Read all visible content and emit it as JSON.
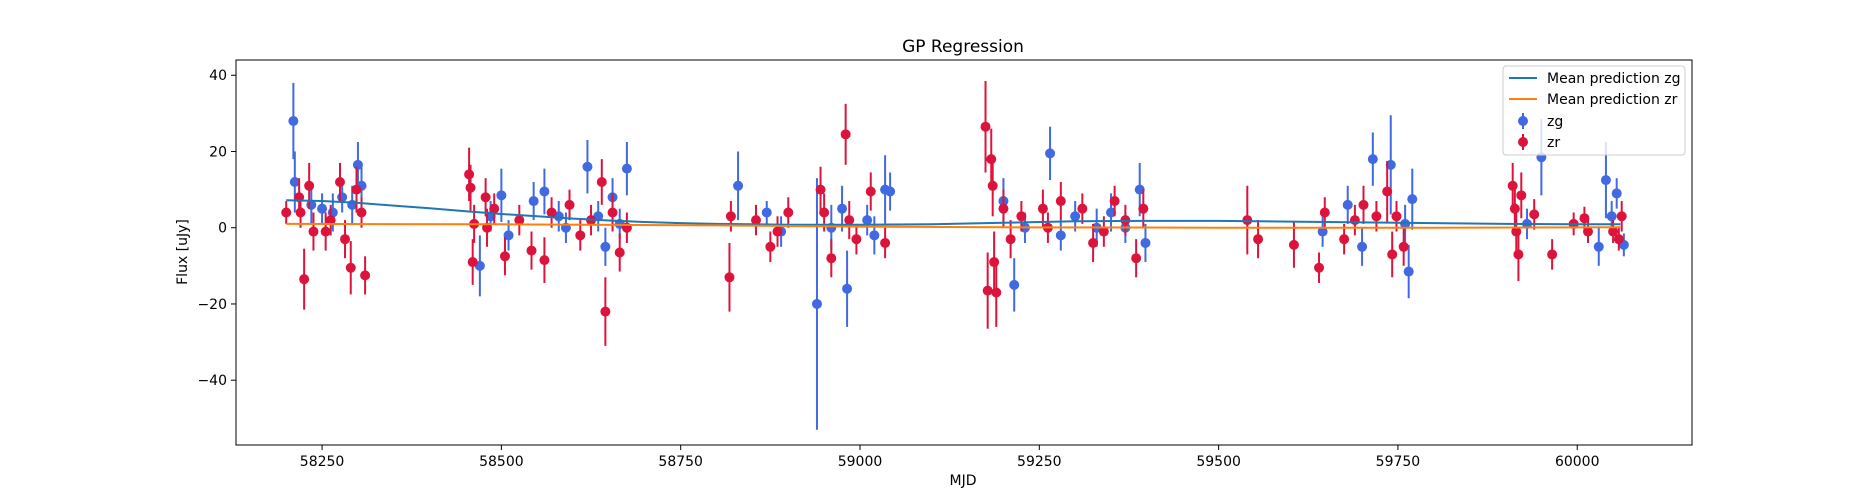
{
  "chart_data": {
    "type": "scatter",
    "title": "GP Regression",
    "xlabel": "MJD",
    "ylabel": "Flux [uJy]",
    "xlim": [
      58130,
      60160
    ],
    "ylim": [
      -57,
      44
    ],
    "xticks": [
      58250,
      58500,
      58750,
      59000,
      59250,
      59500,
      59750,
      60000
    ],
    "xtick_labels": [
      "58250",
      "58500",
      "58750",
      "59000",
      "59250",
      "59500",
      "59750",
      "60000"
    ],
    "yticks": [
      40,
      20,
      0,
      -20,
      -40
    ],
    "ytick_labels": [
      "40",
      "20",
      "0",
      "−20",
      "−40"
    ],
    "grid": false,
    "legend_position": "top-right",
    "series": [
      {
        "name": "Mean prediction zg",
        "kind": "line",
        "color": "#1f77b4",
        "x": [
          58200,
          58250,
          58300,
          58350,
          58400,
          58450,
          58500,
          58550,
          58600,
          58650,
          58700,
          58750,
          58800,
          58900,
          59000,
          59100,
          59200,
          59300,
          59400,
          59500,
          59600,
          59700,
          59800,
          59900,
          60000,
          60060
        ],
        "y": [
          7.2,
          7.0,
          6.5,
          5.8,
          5.1,
          4.3,
          3.6,
          3.0,
          2.4,
          1.9,
          1.5,
          1.2,
          1.0,
          0.8,
          0.8,
          0.9,
          1.3,
          1.7,
          1.8,
          1.8,
          1.6,
          1.4,
          1.2,
          1.0,
          0.9,
          0.9
        ]
      },
      {
        "name": "Mean prediction zr",
        "kind": "line",
        "color": "#ff7f0e",
        "x": [
          58200,
          58500,
          58800,
          59000,
          59200,
          59500,
          59800,
          60060
        ],
        "y": [
          1.0,
          0.9,
          0.6,
          0.3,
          0.1,
          0.0,
          0.0,
          0.1
        ]
      },
      {
        "name": "zg",
        "kind": "errorbar",
        "color": "#4169e1",
        "points": [
          {
            "x": 58210,
            "y": 28,
            "err": 10
          },
          {
            "x": 58212,
            "y": 12,
            "err": 8
          },
          {
            "x": 58235,
            "y": 6,
            "err": 5
          },
          {
            "x": 58250,
            "y": 5,
            "err": 4
          },
          {
            "x": 58265,
            "y": 4,
            "err": 5
          },
          {
            "x": 58278,
            "y": 8,
            "err": 4
          },
          {
            "x": 58292,
            "y": 6,
            "err": 5
          },
          {
            "x": 58300,
            "y": 16.5,
            "err": 6
          },
          {
            "x": 58305,
            "y": 11,
            "err": 6
          },
          {
            "x": 58470,
            "y": -10,
            "err": 8
          },
          {
            "x": 58485,
            "y": 3,
            "err": 4
          },
          {
            "x": 58500,
            "y": 8.5,
            "err": 7
          },
          {
            "x": 58510,
            "y": -2,
            "err": 4
          },
          {
            "x": 58545,
            "y": 7,
            "err": 5
          },
          {
            "x": 58560,
            "y": 9.5,
            "err": 6
          },
          {
            "x": 58580,
            "y": 3,
            "err": 4
          },
          {
            "x": 58590,
            "y": 0,
            "err": 4
          },
          {
            "x": 58620,
            "y": 16,
            "err": 7
          },
          {
            "x": 58635,
            "y": 3,
            "err": 4
          },
          {
            "x": 58645,
            "y": -5,
            "err": 5
          },
          {
            "x": 58655,
            "y": 8,
            "err": 5
          },
          {
            "x": 58665,
            "y": 1,
            "err": 4
          },
          {
            "x": 58675,
            "y": 15.5,
            "err": 7
          },
          {
            "x": 58830,
            "y": 11,
            "err": 9
          },
          {
            "x": 58870,
            "y": 4,
            "err": 3
          },
          {
            "x": 58890,
            "y": -1,
            "err": 4
          },
          {
            "x": 58940,
            "y": -20,
            "err": 33
          },
          {
            "x": 58960,
            "y": 0,
            "err": 6
          },
          {
            "x": 58975,
            "y": 5,
            "err": 6
          },
          {
            "x": 58982,
            "y": -16,
            "err": 10
          },
          {
            "x": 59010,
            "y": 2,
            "err": 4
          },
          {
            "x": 59020,
            "y": -2,
            "err": 5
          },
          {
            "x": 59035,
            "y": 10,
            "err": 9
          },
          {
            "x": 59042,
            "y": 9.5,
            "err": 5
          },
          {
            "x": 59200,
            "y": 7,
            "err": 6
          },
          {
            "x": 59215,
            "y": -15,
            "err": 7
          },
          {
            "x": 59230,
            "y": 0,
            "err": 4
          },
          {
            "x": 59265,
            "y": 19.5,
            "err": 7
          },
          {
            "x": 59280,
            "y": -2,
            "err": 4
          },
          {
            "x": 59300,
            "y": 3,
            "err": 4
          },
          {
            "x": 59330,
            "y": 0,
            "err": 5
          },
          {
            "x": 59350,
            "y": 4,
            "err": 5
          },
          {
            "x": 59370,
            "y": 0,
            "err": 4
          },
          {
            "x": 59390,
            "y": 10,
            "err": 7
          },
          {
            "x": 59398,
            "y": -4,
            "err": 5
          },
          {
            "x": 59645,
            "y": -1,
            "err": 4
          },
          {
            "x": 59680,
            "y": 6,
            "err": 5
          },
          {
            "x": 59700,
            "y": -5,
            "err": 5
          },
          {
            "x": 59715,
            "y": 18,
            "err": 7
          },
          {
            "x": 59740,
            "y": 16.5,
            "err": 13
          },
          {
            "x": 59760,
            "y": 1,
            "err": 5
          },
          {
            "x": 59765,
            "y": -11.5,
            "err": 7
          },
          {
            "x": 59770,
            "y": 7.5,
            "err": 8
          },
          {
            "x": 59930,
            "y": 1,
            "err": 4
          },
          {
            "x": 59950,
            "y": 18.5,
            "err": 10
          },
          {
            "x": 60030,
            "y": -5,
            "err": 5
          },
          {
            "x": 60040,
            "y": 12.5,
            "err": 10
          },
          {
            "x": 60048,
            "y": 3,
            "err": 4
          },
          {
            "x": 60055,
            "y": 9,
            "err": 4
          },
          {
            "x": 60065,
            "y": -4.5,
            "err": 3
          }
        ]
      },
      {
        "name": "zr",
        "kind": "errorbar",
        "color": "#dc143c",
        "points": [
          {
            "x": 58200,
            "y": 4,
            "err": 3
          },
          {
            "x": 58218,
            "y": 8,
            "err": 5
          },
          {
            "x": 58220,
            "y": 4,
            "err": 4
          },
          {
            "x": 58225,
            "y": -13.5,
            "err": 8
          },
          {
            "x": 58232,
            "y": 11,
            "err": 6
          },
          {
            "x": 58238,
            "y": -1,
            "err": 5
          },
          {
            "x": 58255,
            "y": -1,
            "err": 5
          },
          {
            "x": 58262,
            "y": 2,
            "err": 4
          },
          {
            "x": 58275,
            "y": 12,
            "err": 5
          },
          {
            "x": 58282,
            "y": -3,
            "err": 5
          },
          {
            "x": 58290,
            "y": -10.5,
            "err": 7
          },
          {
            "x": 58298,
            "y": 10,
            "err": 6
          },
          {
            "x": 58305,
            "y": 4,
            "err": 4
          },
          {
            "x": 58310,
            "y": -12.5,
            "err": 5
          },
          {
            "x": 58455,
            "y": 14,
            "err": 7
          },
          {
            "x": 58457,
            "y": 10.5,
            "err": 6
          },
          {
            "x": 58460,
            "y": -9,
            "err": 6
          },
          {
            "x": 58462,
            "y": 1,
            "err": 5
          },
          {
            "x": 58478,
            "y": 8,
            "err": 5
          },
          {
            "x": 58480,
            "y": 0,
            "err": 5
          },
          {
            "x": 58490,
            "y": 5,
            "err": 4
          },
          {
            "x": 58505,
            "y": -7.5,
            "err": 5
          },
          {
            "x": 58525,
            "y": 2,
            "err": 4
          },
          {
            "x": 58542,
            "y": -6,
            "err": 5
          },
          {
            "x": 58560,
            "y": -8.5,
            "err": 6
          },
          {
            "x": 58570,
            "y": 4,
            "err": 4
          },
          {
            "x": 58595,
            "y": 6,
            "err": 4
          },
          {
            "x": 58610,
            "y": -2,
            "err": 4
          },
          {
            "x": 58625,
            "y": 2,
            "err": 4
          },
          {
            "x": 58640,
            "y": 12,
            "err": 6
          },
          {
            "x": 58645,
            "y": -22,
            "err": 9
          },
          {
            "x": 58655,
            "y": 4,
            "err": 5
          },
          {
            "x": 58665,
            "y": -6.5,
            "err": 5
          },
          {
            "x": 58675,
            "y": 0,
            "err": 4
          },
          {
            "x": 58818,
            "y": -13,
            "err": 9
          },
          {
            "x": 58820,
            "y": 3,
            "err": 4
          },
          {
            "x": 58855,
            "y": 2,
            "err": 4
          },
          {
            "x": 58875,
            "y": -5,
            "err": 4
          },
          {
            "x": 58885,
            "y": -1,
            "err": 4
          },
          {
            "x": 58900,
            "y": 4,
            "err": 4
          },
          {
            "x": 58945,
            "y": 10,
            "err": 6
          },
          {
            "x": 58950,
            "y": 4,
            "err": 5
          },
          {
            "x": 58960,
            "y": -8,
            "err": 5
          },
          {
            "x": 58980,
            "y": 24.5,
            "err": 8
          },
          {
            "x": 58985,
            "y": 2,
            "err": 5
          },
          {
            "x": 58995,
            "y": -3,
            "err": 4
          },
          {
            "x": 59015,
            "y": 9.5,
            "err": 5
          },
          {
            "x": 59035,
            "y": -4,
            "err": 4
          },
          {
            "x": 59175,
            "y": 26.5,
            "err": 12
          },
          {
            "x": 59178,
            "y": -16.5,
            "err": 10
          },
          {
            "x": 59183,
            "y": 18,
            "err": 8
          },
          {
            "x": 59185,
            "y": 11,
            "err": 8
          },
          {
            "x": 59187,
            "y": -9,
            "err": 8
          },
          {
            "x": 59190,
            "y": -17,
            "err": 9
          },
          {
            "x": 59200,
            "y": 5,
            "err": 5
          },
          {
            "x": 59210,
            "y": -3,
            "err": 5
          },
          {
            "x": 59225,
            "y": 3,
            "err": 4
          },
          {
            "x": 59255,
            "y": 5,
            "err": 5
          },
          {
            "x": 59262,
            "y": 0,
            "err": 4
          },
          {
            "x": 59280,
            "y": 7,
            "err": 5
          },
          {
            "x": 59310,
            "y": 5,
            "err": 4
          },
          {
            "x": 59325,
            "y": -4,
            "err": 5
          },
          {
            "x": 59340,
            "y": -1,
            "err": 4
          },
          {
            "x": 59355,
            "y": 7,
            "err": 4
          },
          {
            "x": 59370,
            "y": 2,
            "err": 4
          },
          {
            "x": 59385,
            "y": -8,
            "err": 5
          },
          {
            "x": 59395,
            "y": 5,
            "err": 5
          },
          {
            "x": 59540,
            "y": 2,
            "err": 9
          },
          {
            "x": 59555,
            "y": -3,
            "err": 5
          },
          {
            "x": 59605,
            "y": -4.5,
            "err": 6
          },
          {
            "x": 59640,
            "y": -10.5,
            "err": 4
          },
          {
            "x": 59648,
            "y": 4,
            "err": 4
          },
          {
            "x": 59675,
            "y": -3,
            "err": 4
          },
          {
            "x": 59690,
            "y": 2,
            "err": 4
          },
          {
            "x": 59702,
            "y": 6,
            "err": 5
          },
          {
            "x": 59720,
            "y": 3,
            "err": 4
          },
          {
            "x": 59735,
            "y": 9.5,
            "err": 8
          },
          {
            "x": 59742,
            "y": -7,
            "err": 6
          },
          {
            "x": 59748,
            "y": 3,
            "err": 4
          },
          {
            "x": 59758,
            "y": -5,
            "err": 5
          },
          {
            "x": 59910,
            "y": 11,
            "err": 6
          },
          {
            "x": 59913,
            "y": 5,
            "err": 5
          },
          {
            "x": 59915,
            "y": -1,
            "err": 5
          },
          {
            "x": 59918,
            "y": -7,
            "err": 7
          },
          {
            "x": 59922,
            "y": 8.5,
            "err": 6
          },
          {
            "x": 59940,
            "y": 3.5,
            "err": 4
          },
          {
            "x": 59965,
            "y": -7,
            "err": 4
          },
          {
            "x": 59995,
            "y": 1,
            "err": 3
          },
          {
            "x": 60010,
            "y": 2.5,
            "err": 3
          },
          {
            "x": 60015,
            "y": -1,
            "err": 3
          },
          {
            "x": 60050,
            "y": -1,
            "err": 3
          },
          {
            "x": 60058,
            "y": -3,
            "err": 3
          },
          {
            "x": 60062,
            "y": 3,
            "err": 4
          }
        ]
      }
    ]
  }
}
